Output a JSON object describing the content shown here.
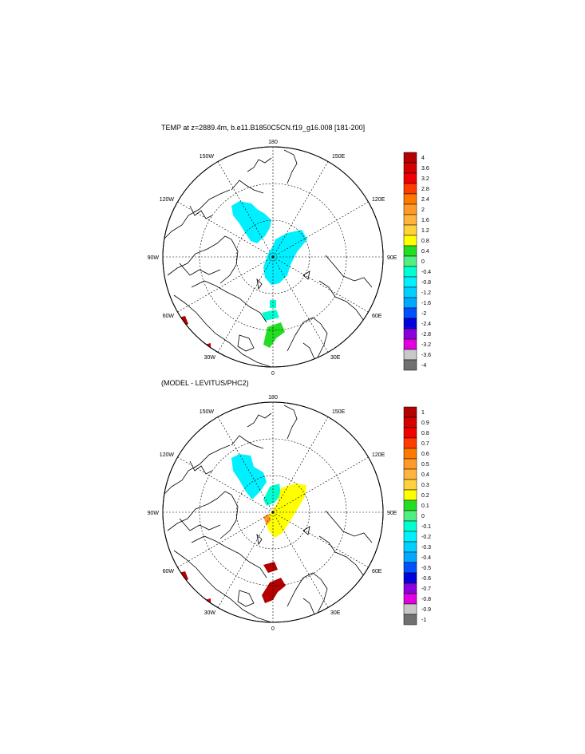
{
  "panel_top": {
    "title": "TEMP at z=2889.4m, b.e11.B1850C5CN.f19_g16.008 [181-200]",
    "longitude_labels": [
      "180",
      "150E",
      "120E",
      "90E",
      "60E",
      "30E",
      "0",
      "30W",
      "60W",
      "90W",
      "120W",
      "150W"
    ],
    "colorbar": {
      "labels": [
        "4",
        "3.6",
        "3.2",
        "2.8",
        "2.4",
        "2",
        "1.6",
        "1.2",
        "0.8",
        "0.4",
        "0",
        "-0.4",
        "-0.8",
        "-1.2",
        "-1.6",
        "-2",
        "-2.4",
        "-2.8",
        "-3.2",
        "-3.6",
        "-4"
      ],
      "colors": [
        "#b30000",
        "#d40000",
        "#f00000",
        "#ff3c00",
        "#ff7800",
        "#ff9a28",
        "#ffb43c",
        "#ffd23c",
        "#ffff00",
        "#22dd22",
        "#50f080",
        "#00ffd0",
        "#00f0ff",
        "#00d0ff",
        "#00a8ff",
        "#0050ff",
        "#0000dd",
        "#8a00dd",
        "#e000e0",
        "#c8c8c8",
        "#707070"
      ]
    }
  },
  "panel_bottom": {
    "title": "(MODEL - LEVITUS/PHC2)",
    "longitude_labels": [
      "180",
      "150E",
      "120E",
      "90E",
      "60E",
      "30E",
      "0",
      "30W",
      "60W",
      "90W",
      "120W",
      "150W"
    ],
    "colorbar": {
      "labels": [
        "1",
        "0.9",
        "0.8",
        "0.7",
        "0.6",
        "0.5",
        "0.4",
        "0.3",
        "0.2",
        "0.1",
        "0",
        "-0.1",
        "-0.2",
        "-0.3",
        "-0.4",
        "-0.5",
        "-0.6",
        "-0.7",
        "-0.8",
        "-0.9",
        "-1"
      ],
      "colors": [
        "#b30000",
        "#d40000",
        "#f00000",
        "#ff3c00",
        "#ff7800",
        "#ff9a28",
        "#ffb43c",
        "#ffd23c",
        "#ffff00",
        "#22dd22",
        "#50f080",
        "#00ffd0",
        "#00f0ff",
        "#00d0ff",
        "#00a8ff",
        "#0050ff",
        "#0000dd",
        "#8a00dd",
        "#e000e0",
        "#c8c8c8",
        "#707070"
      ]
    }
  }
}
